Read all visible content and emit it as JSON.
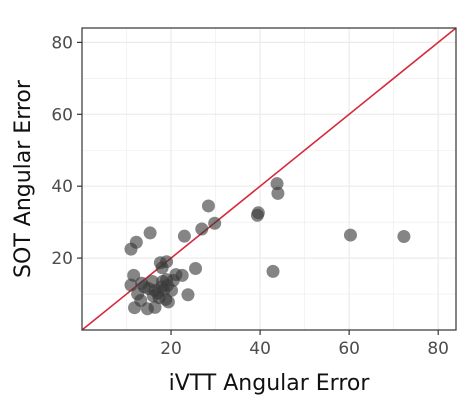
{
  "chart_data": {
    "type": "scatter",
    "title": "",
    "xlabel": "iVTT Angular Error",
    "ylabel": "SOT Angular Error",
    "xlim": [
      0,
      84
    ],
    "ylim": [
      0,
      84
    ],
    "x_ticks": [
      20,
      40,
      60,
      80
    ],
    "y_ticks": [
      20,
      40,
      60,
      80
    ],
    "x_tick_labels": [
      "20",
      "40",
      "60",
      "80"
    ],
    "y_tick_labels": [
      "20",
      "40",
      "60",
      "80"
    ],
    "grid": true,
    "legend": "none",
    "reference_line": {
      "type": "identity",
      "from": [
        0,
        0
      ],
      "to": [
        84,
        84
      ],
      "color": "#d62a3c"
    },
    "point_color": "#3a3a3a",
    "point_opacity": 0.62,
    "grid_color": "#ebebeb",
    "series": [
      {
        "points": [
          [
            72.3,
            26.0
          ],
          [
            60.3,
            26.4
          ],
          [
            43.8,
            40.7
          ],
          [
            44.0,
            38.0
          ],
          [
            42.9,
            16.3
          ],
          [
            39.6,
            32.6
          ],
          [
            39.4,
            31.9
          ],
          [
            29.8,
            29.7
          ],
          [
            28.4,
            34.5
          ],
          [
            26.9,
            28.1
          ],
          [
            23.0,
            26.1
          ],
          [
            25.5,
            17.1
          ],
          [
            15.3,
            27.0
          ],
          [
            12.2,
            24.4
          ],
          [
            11.0,
            22.5
          ],
          [
            17.6,
            18.7
          ],
          [
            19.0,
            19.0
          ],
          [
            18.0,
            17.3
          ],
          [
            22.5,
            15.2
          ],
          [
            21.1,
            15.4
          ],
          [
            20.5,
            13.8
          ],
          [
            19.0,
            14.0
          ],
          [
            11.6,
            15.2
          ],
          [
            11.0,
            12.5
          ],
          [
            12.5,
            10.0
          ],
          [
            14.0,
            12.0
          ],
          [
            15.0,
            11.5
          ],
          [
            15.8,
            13.5
          ],
          [
            16.4,
            11.0
          ],
          [
            17.0,
            10.3
          ],
          [
            17.9,
            12.0
          ],
          [
            18.4,
            11.1
          ],
          [
            19.2,
            12.4
          ],
          [
            19.4,
            7.8
          ],
          [
            18.8,
            8.5
          ],
          [
            13.2,
            8.2
          ],
          [
            11.8,
            6.2
          ],
          [
            14.7,
            5.9
          ],
          [
            16.4,
            6.3
          ],
          [
            17.3,
            9.0
          ],
          [
            20.1,
            11.0
          ],
          [
            23.8,
            9.8
          ],
          [
            13.4,
            13.0
          ],
          [
            16.0,
            9.5
          ],
          [
            18.1,
            13.5
          ]
        ]
      }
    ]
  }
}
